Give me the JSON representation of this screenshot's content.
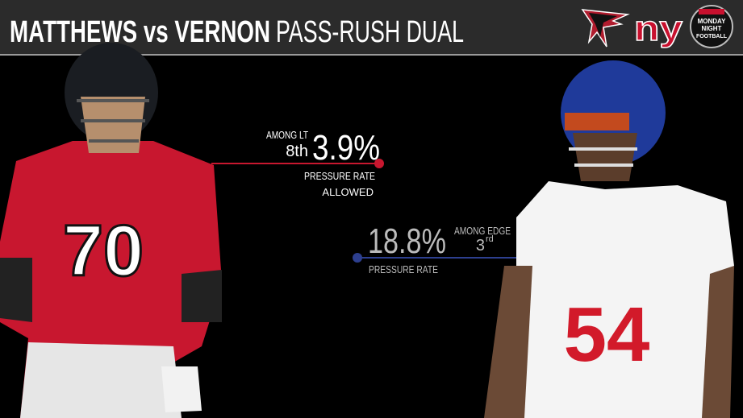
{
  "header": {
    "title_bold": "MATTHEWS vs VERNON",
    "title_light": "PASS-RUSH DUAL",
    "logos": {
      "giants": "ny",
      "mnf": [
        "MONDAY",
        "NIGHT",
        "FOOTBALL"
      ]
    }
  },
  "left_player": {
    "jersey_number": "70",
    "stat": {
      "rank_context": "AMONG LT",
      "rank": "8th",
      "value": "3.9%",
      "label_lines": [
        "PRESSURE RATE",
        "ALLOWED"
      ]
    }
  },
  "right_player": {
    "jersey_number": "54",
    "stat": {
      "value": "18.8%",
      "rank_context": "AMONG EDGE",
      "rank": "3",
      "rank_suffix": "rd",
      "label": "PRESSURE RATE"
    }
  }
}
